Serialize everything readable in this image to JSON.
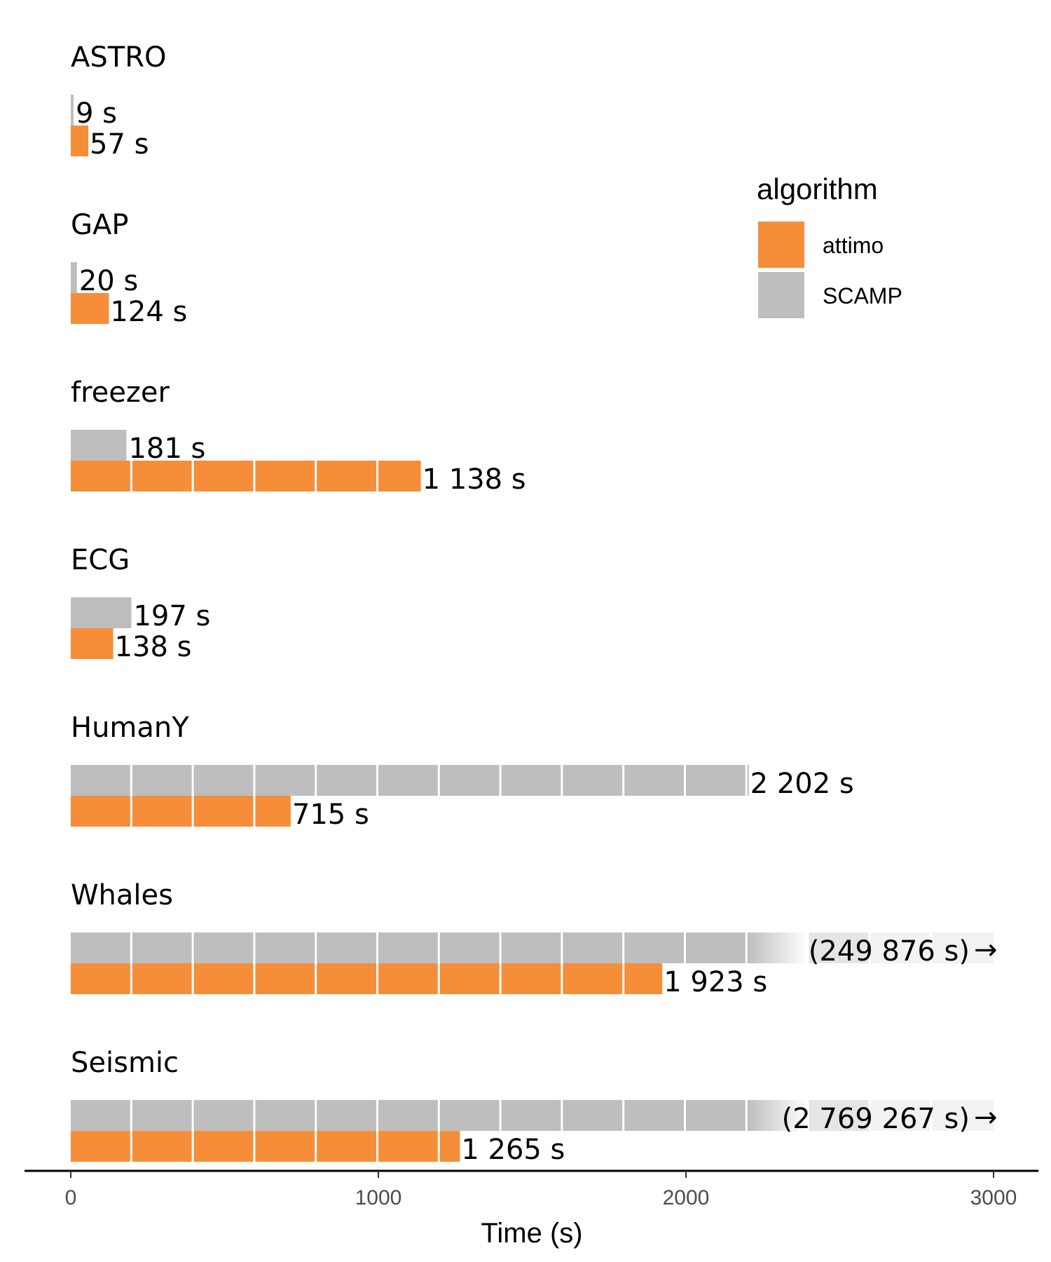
{
  "chart_data": {
    "type": "bar",
    "orientation": "horizontal",
    "faceted": true,
    "xlabel": "Time (s)",
    "xlim": [
      0,
      3000
    ],
    "x_ticks": [
      0,
      1000,
      2000,
      3000
    ],
    "x_tick_labels": [
      "0",
      "1000",
      "2000",
      "3000"
    ],
    "segment_width": 200,
    "grid": false,
    "legend": {
      "title": "algorithm",
      "position": "top-right",
      "entries": [
        {
          "name": "attimo",
          "color": "#f68d39"
        },
        {
          "name": "SCAMP",
          "color": "#bebebe"
        }
      ]
    },
    "groups": [
      {
        "name": "ASTRO",
        "scamp": 9,
        "scamp_label": "9 s",
        "attimo": 57,
        "attimo_label": "57 s"
      },
      {
        "name": "GAP",
        "scamp": 20,
        "scamp_label": "20 s",
        "attimo": 124,
        "attimo_label": "124 s"
      },
      {
        "name": "freezer",
        "scamp": 181,
        "scamp_label": "181 s",
        "attimo": 1138,
        "attimo_label": "1 138 s"
      },
      {
        "name": "ECG",
        "scamp": 197,
        "scamp_label": "197 s",
        "attimo": 138,
        "attimo_label": "138 s"
      },
      {
        "name": "HumanY",
        "scamp": 2202,
        "scamp_label": "2 202 s",
        "attimo": 715,
        "attimo_label": "715 s"
      },
      {
        "name": "Whales",
        "scamp": 249876,
        "scamp_label": "(249 876 s)",
        "scamp_truncated": true,
        "attimo": 1923,
        "attimo_label": "1 923 s"
      },
      {
        "name": "Seismic",
        "scamp": 2769267,
        "scamp_label": "(2 769 267 s)",
        "scamp_truncated": true,
        "attimo": 1265,
        "attimo_label": "1 265 s"
      }
    ],
    "truncation_arrow": "→"
  }
}
